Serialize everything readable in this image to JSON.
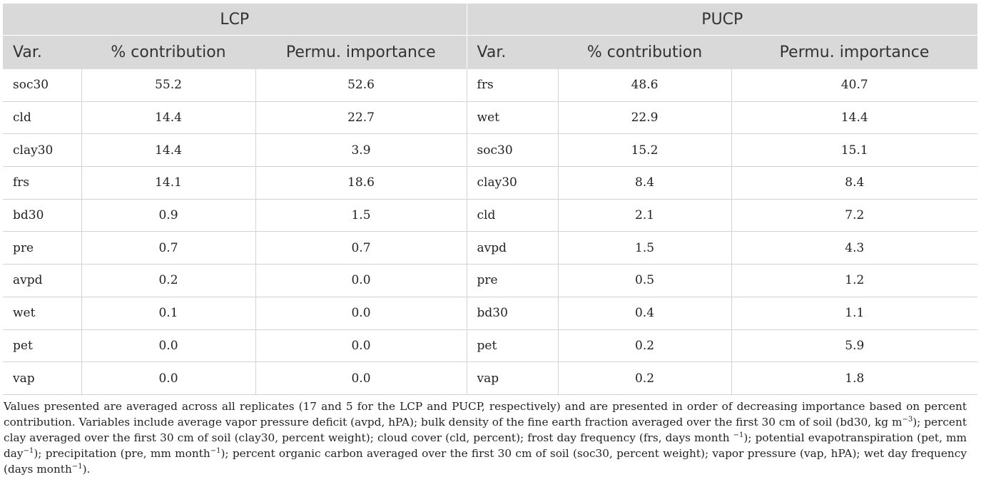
{
  "groups": {
    "lcp": "LCP",
    "pucp": "PUCP"
  },
  "columns": {
    "var": "Var.",
    "contribution": "% contribution",
    "permu": "Permu. importance"
  },
  "rows": [
    {
      "lcp_var": "soc30",
      "lcp_contrib": "55.2",
      "lcp_permu": "52.6",
      "pucp_var": "frs",
      "pucp_contrib": "48.6",
      "pucp_permu": "40.7"
    },
    {
      "lcp_var": "cld",
      "lcp_contrib": "14.4",
      "lcp_permu": "22.7",
      "pucp_var": "wet",
      "pucp_contrib": "22.9",
      "pucp_permu": "14.4"
    },
    {
      "lcp_var": "clay30",
      "lcp_contrib": "14.4",
      "lcp_permu": "3.9",
      "pucp_var": "soc30",
      "pucp_contrib": "15.2",
      "pucp_permu": "15.1"
    },
    {
      "lcp_var": "frs",
      "lcp_contrib": "14.1",
      "lcp_permu": "18.6",
      "pucp_var": "clay30",
      "pucp_contrib": "8.4",
      "pucp_permu": "8.4"
    },
    {
      "lcp_var": "bd30",
      "lcp_contrib": "0.9",
      "lcp_permu": "1.5",
      "pucp_var": "cld",
      "pucp_contrib": "2.1",
      "pucp_permu": "7.2"
    },
    {
      "lcp_var": "pre",
      "lcp_contrib": "0.7",
      "lcp_permu": "0.7",
      "pucp_var": "avpd",
      "pucp_contrib": "1.5",
      "pucp_permu": "4.3"
    },
    {
      "lcp_var": "avpd",
      "lcp_contrib": "0.2",
      "lcp_permu": "0.0",
      "pucp_var": "pre",
      "pucp_contrib": "0.5",
      "pucp_permu": "1.2"
    },
    {
      "lcp_var": "wet",
      "lcp_contrib": "0.1",
      "lcp_permu": "0.0",
      "pucp_var": "bd30",
      "pucp_contrib": "0.4",
      "pucp_permu": "1.1"
    },
    {
      "lcp_var": "pet",
      "lcp_contrib": "0.0",
      "lcp_permu": "0.0",
      "pucp_var": "pet",
      "pucp_contrib": "0.2",
      "pucp_permu": "5.9"
    },
    {
      "lcp_var": "vap",
      "lcp_contrib": "0.0",
      "lcp_permu": "0.0",
      "pucp_var": "vap",
      "pucp_contrib": "0.2",
      "pucp_permu": "1.8"
    }
  ],
  "footnote": {
    "t1": "Values presented are averaged across all replicates (17 and 5 for the LCP and PUCP, respectively) and are presented in order of decreasing importance based on percent contribution. Variables include average vapor pressure deficit (avpd, hPA); bulk density of the fine earth fraction averaged over the first 30 cm of soil (bd30, kg m",
    "s1": "−3",
    "t2": "); percent clay averaged over the first 30 cm of soil (clay30, percent weight); cloud cover (cld, percent); frost day frequency (frs, days month ",
    "s2": "−1",
    "t3": "); potential evapotranspiration (pet, mm day",
    "s3": "−1",
    "t4": "); precipitation (pre, mm month",
    "s4": "−1",
    "t5": "); percent organic carbon averaged over the first 30 cm of soil (soc30, percent weight); vapor pressure (vap, hPA); wet day frequency (days month",
    "s5": "−1",
    "t6": ")."
  }
}
